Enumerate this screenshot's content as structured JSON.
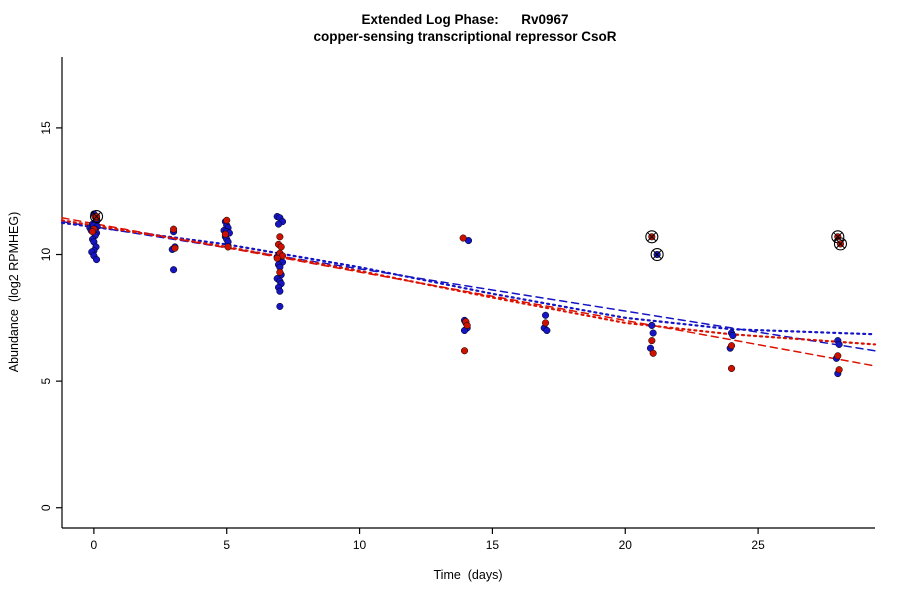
{
  "chart_data": {
    "type": "scatter",
    "title": "Extended Log Phase:      Rv0967",
    "subtitle": "copper-sensing transcriptional repressor CsoR",
    "xlabel": "Time  (days)",
    "ylabel": "Abundance  (log2 RPMHEG)",
    "xlim": [
      -1.2,
      29.4
    ],
    "ylim": [
      -0.8,
      17.8
    ],
    "xticks": [
      0,
      5,
      10,
      15,
      20,
      25
    ],
    "yticks": [
      0,
      5,
      10,
      15
    ],
    "colors": {
      "blue": "#1515c4",
      "red": "#cc1100",
      "outline": "#000000"
    },
    "series": [
      {
        "name": "condition-blue",
        "color": "#1515c4",
        "points": [
          [
            -0.15,
            11.05
          ],
          [
            0.0,
            11.6
          ],
          [
            0.05,
            11.5
          ],
          [
            0.1,
            11.3
          ],
          [
            -0.05,
            11.2
          ],
          [
            0.0,
            11.15
          ],
          [
            0.12,
            11.1
          ],
          [
            0.05,
            11.0
          ],
          [
            -0.1,
            10.95
          ],
          [
            0.0,
            10.9
          ],
          [
            0.1,
            10.85
          ],
          [
            0.05,
            10.75
          ],
          [
            -0.05,
            10.6
          ],
          [
            0.0,
            10.5
          ],
          [
            0.08,
            10.3
          ],
          [
            0.0,
            10.15
          ],
          [
            -0.08,
            10.1
          ],
          [
            0.0,
            9.95
          ],
          [
            0.1,
            9.8
          ],
          [
            3.0,
            10.9
          ],
          [
            3.05,
            10.3
          ],
          [
            2.95,
            10.2
          ],
          [
            3.0,
            9.4
          ],
          [
            4.95,
            11.3
          ],
          [
            5.0,
            11.15
          ],
          [
            5.05,
            11.05
          ],
          [
            4.9,
            10.95
          ],
          [
            5.0,
            10.9
          ],
          [
            5.1,
            10.85
          ],
          [
            4.95,
            10.7
          ],
          [
            5.0,
            10.6
          ],
          [
            5.05,
            10.5
          ],
          [
            6.9,
            11.5
          ],
          [
            7.0,
            11.45
          ],
          [
            7.1,
            11.3
          ],
          [
            6.95,
            11.2
          ],
          [
            7.0,
            10.0
          ],
          [
            7.05,
            9.95
          ],
          [
            6.9,
            9.9
          ],
          [
            7.0,
            9.8
          ],
          [
            7.1,
            9.7
          ],
          [
            6.95,
            9.6
          ],
          [
            7.0,
            9.5
          ],
          [
            7.05,
            9.2
          ],
          [
            6.9,
            9.05
          ],
          [
            7.0,
            8.95
          ],
          [
            7.05,
            8.85
          ],
          [
            6.95,
            8.7
          ],
          [
            7.0,
            8.55
          ],
          [
            7.0,
            7.95
          ],
          [
            14.1,
            10.55
          ],
          [
            13.95,
            7.4
          ],
          [
            14.0,
            7.3
          ],
          [
            14.05,
            7.1
          ],
          [
            13.95,
            7.0
          ],
          [
            17.0,
            7.6
          ],
          [
            16.95,
            7.1
          ],
          [
            17.05,
            7.0
          ],
          [
            21.0,
            7.2
          ],
          [
            21.05,
            6.9
          ],
          [
            20.95,
            6.3
          ],
          [
            24.0,
            6.9
          ],
          [
            24.05,
            6.8
          ],
          [
            23.95,
            6.3
          ],
          [
            28.0,
            6.6
          ],
          [
            28.05,
            6.45
          ],
          [
            27.95,
            5.9
          ],
          [
            28.0,
            5.3
          ]
        ]
      },
      {
        "name": "condition-red",
        "color": "#cc1100",
        "points": [
          [
            0.05,
            11.5
          ],
          [
            0.1,
            11.45
          ],
          [
            0.0,
            11.0
          ],
          [
            -0.05,
            10.9
          ],
          [
            3.0,
            11.0
          ],
          [
            3.05,
            10.25
          ],
          [
            5.0,
            11.35
          ],
          [
            4.95,
            10.8
          ],
          [
            5.05,
            10.3
          ],
          [
            7.0,
            10.7
          ],
          [
            6.95,
            10.4
          ],
          [
            7.05,
            10.3
          ],
          [
            7.0,
            10.05
          ],
          [
            7.1,
            9.95
          ],
          [
            6.9,
            9.85
          ],
          [
            7.0,
            9.3
          ],
          [
            13.9,
            10.65
          ],
          [
            14.0,
            7.35
          ],
          [
            14.05,
            7.2
          ],
          [
            13.95,
            6.2
          ],
          [
            17.0,
            7.3
          ],
          [
            21.0,
            6.6
          ],
          [
            21.05,
            6.1
          ],
          [
            24.0,
            6.4
          ],
          [
            24.0,
            5.5
          ],
          [
            28.0,
            6.0
          ],
          [
            28.05,
            5.45
          ]
        ]
      }
    ],
    "outliers": [
      {
        "x": 0.1,
        "y": 11.5,
        "color": "#cc1100"
      },
      {
        "x": 21.0,
        "y": 10.7,
        "color": "#cc1100"
      },
      {
        "x": 21.2,
        "y": 10.0,
        "color": "#1515c4"
      },
      {
        "x": 28.0,
        "y": 10.7,
        "color": "#cc1100"
      },
      {
        "x": 28.1,
        "y": 10.42,
        "color": "#cc1100"
      }
    ],
    "fits": [
      {
        "name": "blue-linear-fit",
        "color": "#1515c4",
        "dash": "7,5",
        "width": 1.5,
        "points": [
          [
            -1.2,
            11.3
          ],
          [
            29.4,
            6.2
          ]
        ]
      },
      {
        "name": "red-linear-fit",
        "color": "#dd1100",
        "dash": "7,5",
        "width": 1.5,
        "points": [
          [
            -1.2,
            11.45
          ],
          [
            29.4,
            5.6
          ]
        ]
      },
      {
        "name": "blue-smooth-fit",
        "color": "#1515c4",
        "dash": "2,4",
        "width": 2.2,
        "points": [
          [
            -1.2,
            11.25
          ],
          [
            5,
            10.4
          ],
          [
            10,
            9.5
          ],
          [
            15,
            8.45
          ],
          [
            20,
            7.5
          ],
          [
            24,
            7.05
          ],
          [
            29.4,
            6.85
          ]
        ]
      },
      {
        "name": "red-smooth-fit",
        "color": "#dd1100",
        "dash": "2,4",
        "width": 2.2,
        "points": [
          [
            -1.2,
            11.35
          ],
          [
            5,
            10.3
          ],
          [
            10,
            9.35
          ],
          [
            15,
            8.3
          ],
          [
            20,
            7.3
          ],
          [
            24,
            6.85
          ],
          [
            29.4,
            6.45
          ]
        ]
      }
    ]
  }
}
